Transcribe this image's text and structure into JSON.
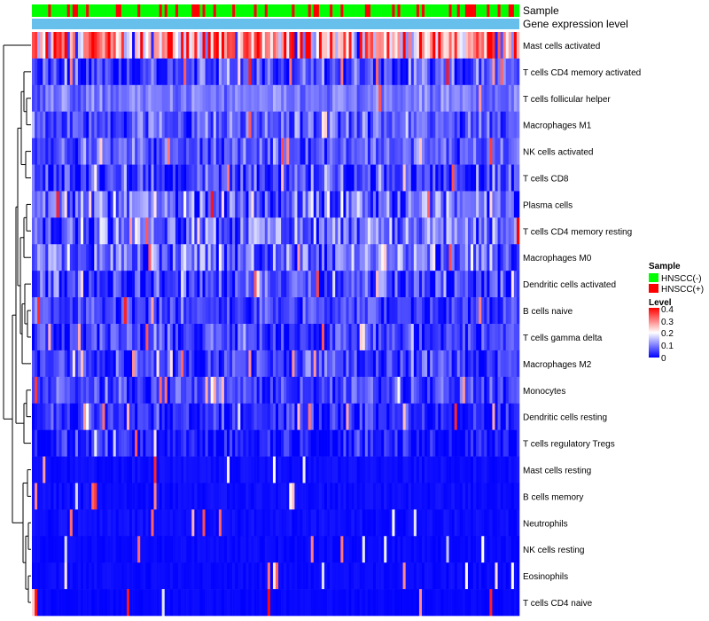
{
  "chart_data": {
    "type": "heatmap",
    "title": "",
    "n_samples": 180,
    "rows": [
      {
        "label": "Mast cells activated",
        "mean": 0.26,
        "spread": 0.14
      },
      {
        "label": "T cells CD4 memory activated",
        "mean": 0.05,
        "spread": 0.06
      },
      {
        "label": "T cells follicular helper",
        "mean": 0.09,
        "spread": 0.03
      },
      {
        "label": "Macrophages M1",
        "mean": 0.07,
        "spread": 0.05
      },
      {
        "label": "NK cells activated",
        "mean": 0.07,
        "spread": 0.04
      },
      {
        "label": "T cells CD8",
        "mean": 0.05,
        "spread": 0.06
      },
      {
        "label": "Plasma cells",
        "mean": 0.08,
        "spread": 0.08
      },
      {
        "label": "T cells CD4 memory resting",
        "mean": 0.09,
        "spread": 0.07
      },
      {
        "label": "Macrophages M0",
        "mean": 0.08,
        "spread": 0.07
      },
      {
        "label": "Dendritic cells activated",
        "mean": 0.06,
        "spread": 0.06
      },
      {
        "label": "B cells naive",
        "mean": 0.05,
        "spread": 0.04
      },
      {
        "label": "T cells gamma delta",
        "mean": 0.05,
        "spread": 0.05
      },
      {
        "label": "Macrophages M2",
        "mean": 0.05,
        "spread": 0.05
      },
      {
        "label": "Monocytes",
        "mean": 0.05,
        "spread": 0.04
      },
      {
        "label": "Dendritic cells resting",
        "mean": 0.03,
        "spread": 0.04
      },
      {
        "label": "T cells regulatory  Tregs",
        "mean": 0.02,
        "spread": 0.04
      },
      {
        "label": "Mast cells resting",
        "mean": 0.005,
        "spread": 0.02
      },
      {
        "label": "B cells memory",
        "mean": 0.005,
        "spread": 0.02
      },
      {
        "label": "Neutrophils",
        "mean": 0.01,
        "spread": 0.02
      },
      {
        "label": "NK cells resting",
        "mean": 0.005,
        "spread": 0.015
      },
      {
        "label": "Eosinophils",
        "mean": 0.005,
        "spread": 0.015
      },
      {
        "label": "T cells CD4 naive",
        "mean": 0.003,
        "spread": 0.01
      }
    ],
    "annotation_tracks": [
      "Sample",
      "Gene expression level"
    ],
    "annotation_colors": {
      "HNSCC(-)": "#00FF00",
      "HNSCC(+)": "#FF0000",
      "Gene expression level": "#67C0EC"
    },
    "legend": {
      "sample_title": "Sample",
      "sample_items": [
        {
          "label": "HNSCC(-)",
          "color": "#00FF00"
        },
        {
          "label": "HNSCC(+)",
          "color": "#FF0000"
        }
      ],
      "level_title": "Level",
      "level_ticks": [
        "0.4",
        "0.3",
        "0.2",
        "0.1",
        "0"
      ],
      "level_range": [
        0,
        0.4
      ],
      "colors": {
        "low": "#0000FF",
        "mid": "#FFFFFF",
        "high": "#FF0000"
      }
    }
  }
}
